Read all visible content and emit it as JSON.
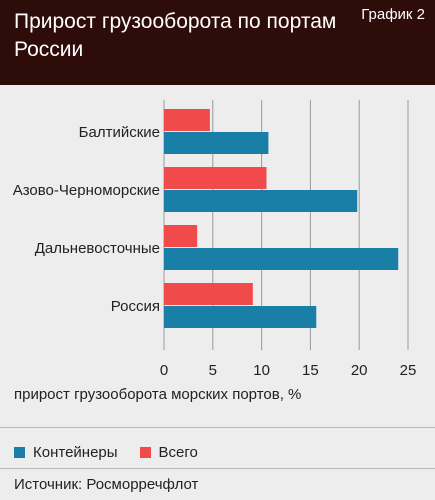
{
  "header": {
    "title": "Прирост грузооборота по портам России",
    "badge": "График 2"
  },
  "chart_data": {
    "type": "bar",
    "orientation": "horizontal",
    "categories": [
      "Балтийские",
      "Азово-Черноморские",
      "Дальневосточные",
      "Россия"
    ],
    "series": [
      {
        "name": "Всего",
        "color": "#f04a4a",
        "values": [
          4.7,
          10.5,
          3.4,
          9.1
        ]
      },
      {
        "name": "Контейнеры",
        "color": "#1a7fa6",
        "values": [
          10.7,
          19.8,
          24.0,
          15.6
        ]
      }
    ],
    "xlim": [
      0,
      25
    ],
    "xticks": [
      "0",
      "5",
      "10",
      "15",
      "20",
      "25"
    ],
    "xlabel": "прирост грузооборота морских портов, %",
    "legend": [
      "Контейнеры",
      "Всего"
    ],
    "legend_placement": "bottom",
    "grid": true
  },
  "footer": {
    "source": "Источник: Росморречфлот"
  }
}
